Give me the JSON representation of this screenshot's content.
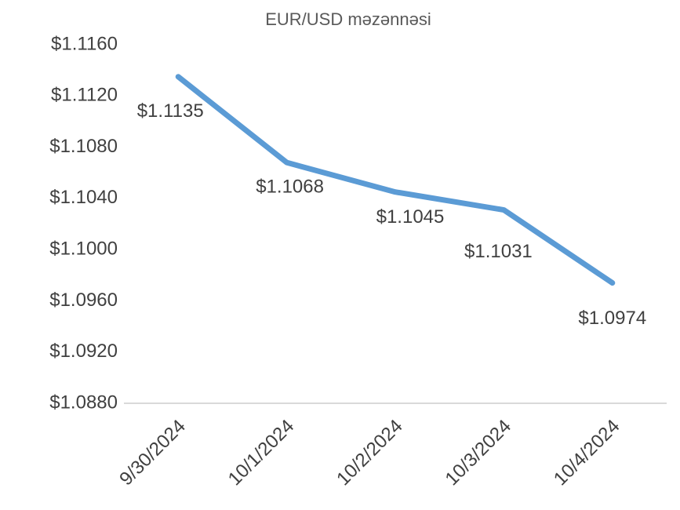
{
  "chart_data": {
    "type": "line",
    "title": "EUR/USD məzənnəsi",
    "categories": [
      "9/30/2024",
      "10/1/2024",
      "10/2/2024",
      "10/3/2024",
      "10/4/2024"
    ],
    "values": [
      1.1135,
      1.1068,
      1.1045,
      1.1031,
      1.0974
    ],
    "value_labels": [
      "$1.1135",
      "$1.1068",
      "$1.1045",
      "$1.1031",
      "$1.0974"
    ],
    "color": "#5b9bd5",
    "ylim": [
      1.088,
      1.116
    ],
    "yticks": [
      {
        "value": 1.088,
        "label": "$1.0880"
      },
      {
        "value": 1.092,
        "label": "$1.0920"
      },
      {
        "value": 1.096,
        "label": "$1.0960"
      },
      {
        "value": 1.1,
        "label": "$1.1000"
      },
      {
        "value": 1.104,
        "label": "$1.1040"
      },
      {
        "value": 1.108,
        "label": "$1.1080"
      },
      {
        "value": 1.112,
        "label": "$1.1120"
      },
      {
        "value": 1.116,
        "label": "$1.1160"
      }
    ],
    "grid": false
  }
}
